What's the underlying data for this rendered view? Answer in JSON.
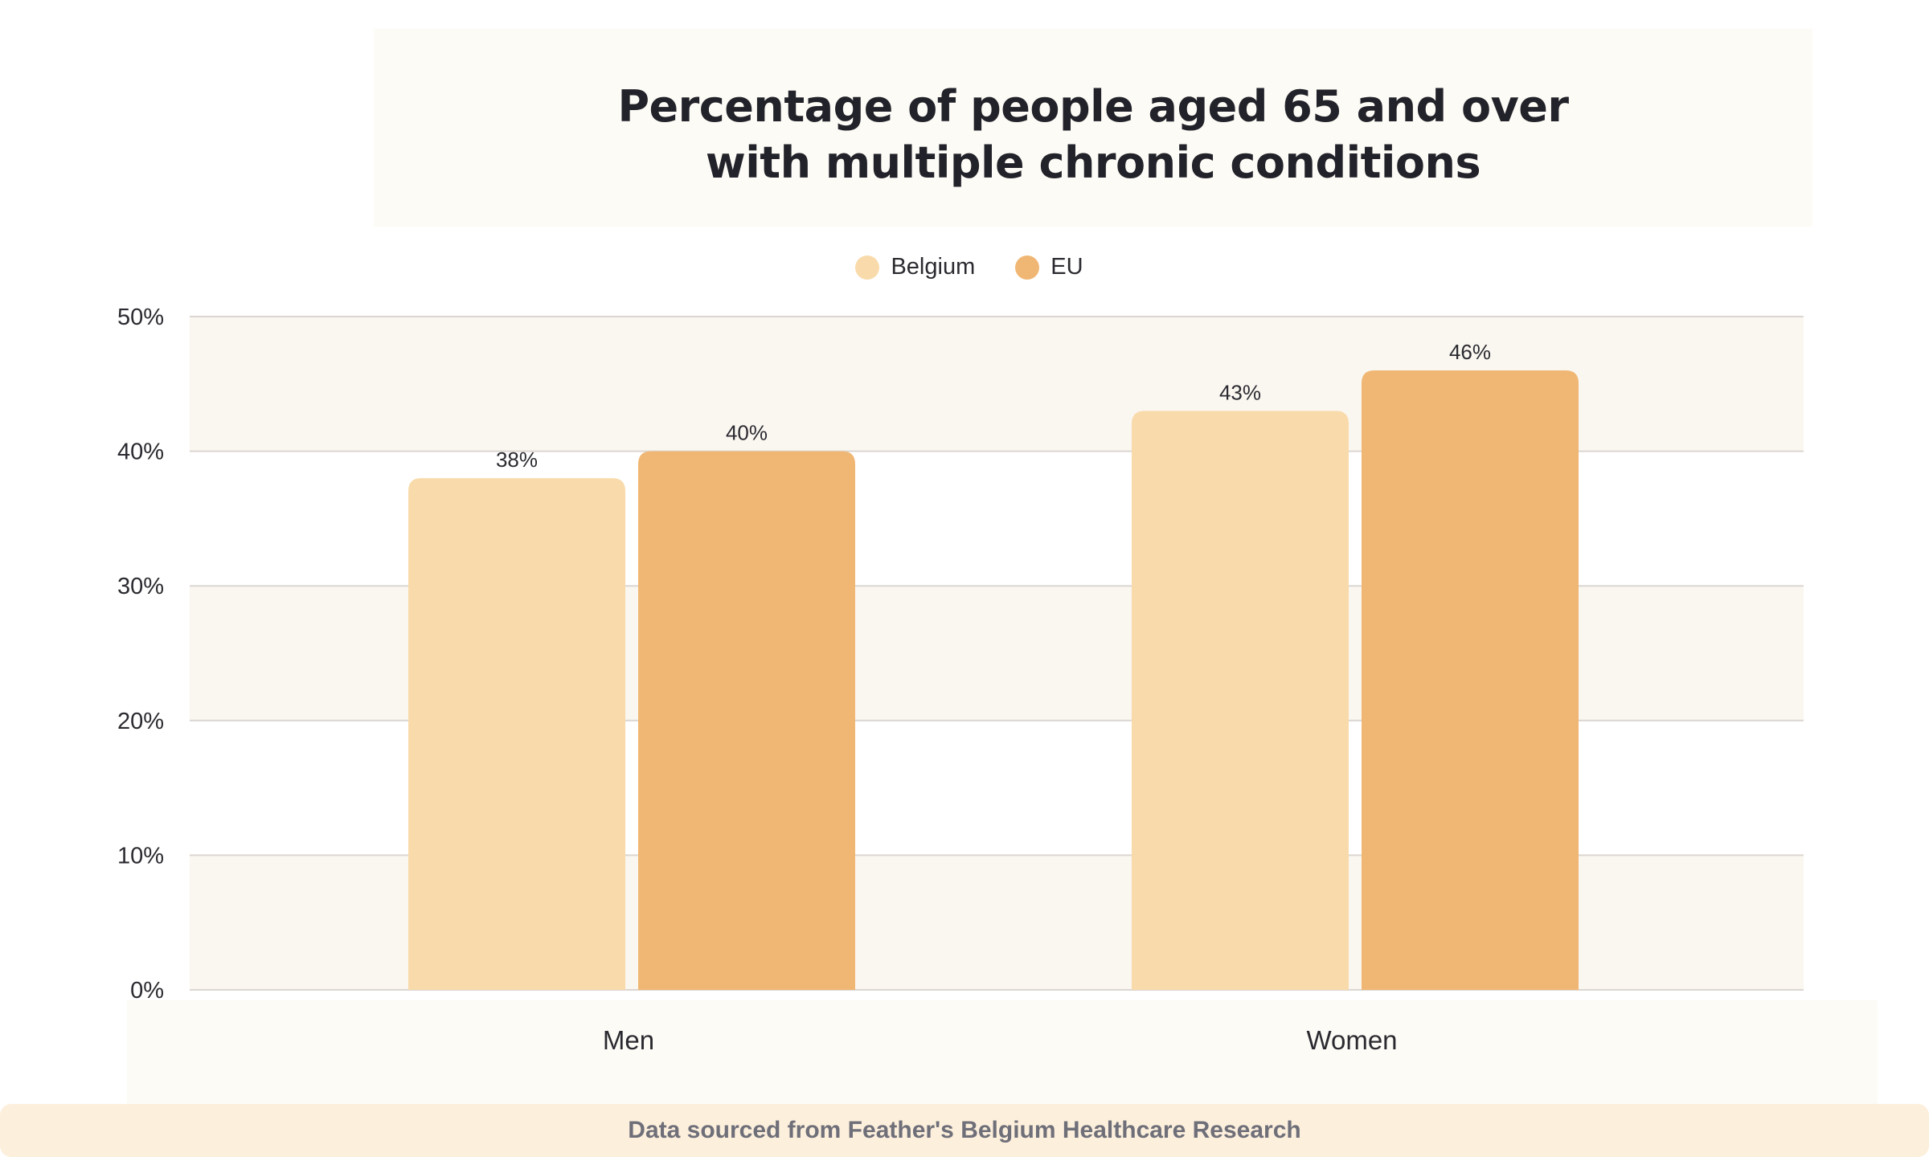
{
  "chart_data": {
    "type": "bar",
    "title_lines": [
      "Percentage of people aged 65 and over",
      "with multiple chronic conditions"
    ],
    "categories": [
      "Men",
      "Women"
    ],
    "series": [
      {
        "name": "Belgium",
        "values": [
          38,
          43
        ],
        "labels": [
          "38%",
          "43%"
        ],
        "color": "#f9dbab"
      },
      {
        "name": "EU",
        "values": [
          40,
          46
        ],
        "labels": [
          "40%",
          "46%"
        ],
        "color": "#f0b774"
      }
    ],
    "ylim": [
      0,
      50
    ],
    "yticks": [
      0,
      10,
      20,
      30,
      40,
      50
    ],
    "ytick_labels": [
      "0%",
      "10%",
      "20%",
      "30%",
      "40%",
      "50%"
    ],
    "legend_position": "top-center",
    "grid": true,
    "band_color": "#faf6f0",
    "grid_color": "#dcd6d1"
  },
  "footer": {
    "text": "Data sourced from Feather's Belgium Healthcare Research"
  }
}
